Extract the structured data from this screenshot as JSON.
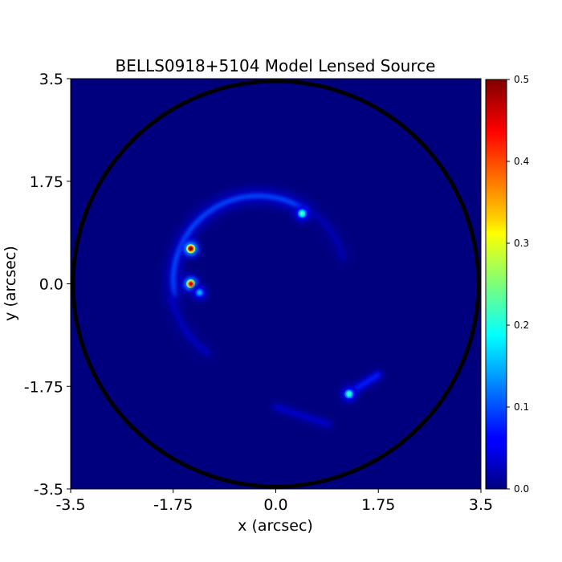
{
  "chart_data": {
    "type": "heatmap",
    "title": "BELLS0918+5104 Model Lensed Source",
    "xlabel": "x (arcsec)",
    "ylabel": "y (arcsec)",
    "xlim": [
      -3.5,
      3.5
    ],
    "ylim": [
      -3.5,
      3.5
    ],
    "x_ticks": [
      -3.5,
      -1.75,
      0.0,
      1.75,
      3.5
    ],
    "x_tick_labels": [
      "-3.5",
      "-1.75",
      "0.0",
      "1.75",
      "3.5"
    ],
    "y_ticks": [
      -3.5,
      -1.75,
      0.0,
      1.75,
      3.5
    ],
    "y_tick_labels": [
      "-3.5",
      "-1.75",
      "0.0",
      "1.75",
      "3.5"
    ],
    "colormap": "jet",
    "background_value": 0.0,
    "mask_radius_arcsec": 3.5,
    "mask_color": "#000000",
    "colorbar": {
      "range": [
        0.0,
        0.5
      ],
      "ticks": [
        0.0,
        0.1,
        0.2,
        0.3,
        0.4,
        0.5
      ],
      "tick_labels": [
        "0.0",
        "0.1",
        "0.2",
        "0.3",
        "0.4",
        "0.5"
      ],
      "position": "right"
    },
    "features": [
      {
        "kind": "arc",
        "center": [
          -0.3,
          0.05
        ],
        "radius": 1.45,
        "angle_start_deg": 55,
        "angle_end_deg": 190,
        "peak": 0.1
      },
      {
        "kind": "arc",
        "center": [
          -0.3,
          0.05
        ],
        "radius": 1.5,
        "angle_start_deg": 190,
        "angle_end_deg": 235,
        "peak": 0.03
      },
      {
        "kind": "arc",
        "center": [
          -0.3,
          0.05
        ],
        "radius": 1.5,
        "angle_start_deg": 15,
        "angle_end_deg": 50,
        "peak": 0.025
      },
      {
        "kind": "knot",
        "x": -1.45,
        "y": 0.6,
        "peak": 0.5
      },
      {
        "kind": "knot",
        "x": -1.45,
        "y": 0.0,
        "peak": 0.45
      },
      {
        "kind": "knot",
        "x": -1.3,
        "y": -0.15,
        "peak": 0.15
      },
      {
        "kind": "knot",
        "x": 0.45,
        "y": 1.2,
        "peak": 0.22
      },
      {
        "kind": "knot",
        "x": 1.25,
        "y": -1.88,
        "peak": 0.22
      },
      {
        "kind": "streak",
        "from": [
          1.35,
          -1.8
        ],
        "to": [
          1.75,
          -1.55
        ],
        "peak": 0.08
      },
      {
        "kind": "streak",
        "from": [
          0.0,
          -2.1
        ],
        "to": [
          0.9,
          -2.4
        ],
        "peak": 0.035
      }
    ]
  }
}
